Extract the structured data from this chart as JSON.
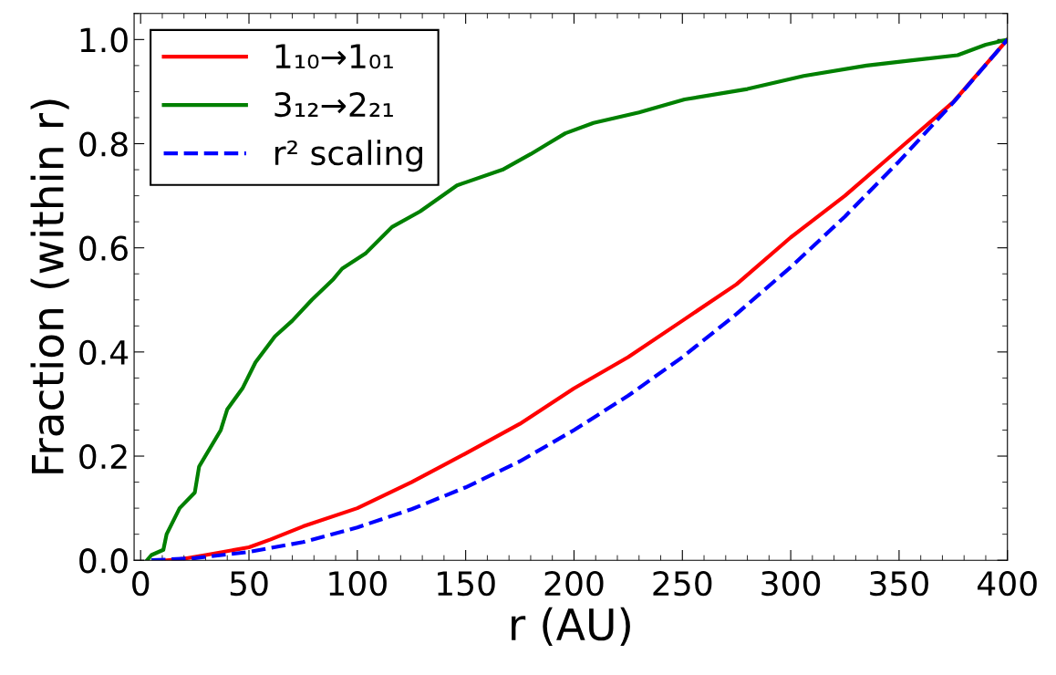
{
  "chart_data": {
    "type": "line",
    "xlabel": "r (AU)",
    "ylabel": "Fraction (within r)",
    "xlim": [
      -3,
      400
    ],
    "ylim": [
      0,
      1.05
    ],
    "xticks": [
      0,
      50,
      100,
      150,
      200,
      250,
      300,
      350,
      400
    ],
    "yticks": [
      {
        "value": 0,
        "label": "0.0"
      },
      {
        "value": 0.2,
        "label": "0.2"
      },
      {
        "value": 0.4,
        "label": "0.4"
      },
      {
        "value": 0.6,
        "label": "0.6"
      },
      {
        "value": 0.8,
        "label": "0.8"
      },
      {
        "value": 1.0,
        "label": "1.0"
      }
    ],
    "legend": "top left",
    "grid": false,
    "series": [
      {
        "name": "1₁₀→1₀₁",
        "color": "#ff0000",
        "line_style": "solid",
        "x": [
          12,
          20,
          30,
          50,
          60,
          75,
          100,
          125,
          150,
          175,
          200,
          225,
          250,
          275,
          300,
          325,
          350,
          375,
          400
        ],
        "values": [
          0,
          0.003,
          0.01,
          0.025,
          0.04,
          0.065,
          0.1,
          0.15,
          0.205,
          0.262,
          0.33,
          0.39,
          0.46,
          0.53,
          0.62,
          0.7,
          0.79,
          0.88,
          1.0
        ]
      },
      {
        "name": "3₁₂→2₂₁",
        "color": "#008000",
        "line_style": "solid",
        "x": [
          3,
          5,
          10.5,
          12,
          18,
          25,
          27,
          37,
          40,
          47,
          53,
          62,
          70,
          79,
          89,
          93,
          104,
          116,
          129,
          146,
          167,
          180,
          188,
          196,
          209,
          230,
          251,
          280,
          306,
          335,
          356,
          377,
          390,
          400
        ],
        "values": [
          0,
          0.01,
          0.02,
          0.05,
          0.1,
          0.13,
          0.18,
          0.25,
          0.29,
          0.33,
          0.38,
          0.43,
          0.46,
          0.5,
          0.54,
          0.56,
          0.59,
          0.64,
          0.67,
          0.72,
          0.75,
          0.78,
          0.8,
          0.82,
          0.84,
          0.86,
          0.885,
          0.905,
          0.93,
          0.95,
          0.96,
          0.97,
          0.99,
          1.0
        ]
      },
      {
        "name": "r² scaling",
        "color": "#0000ff",
        "line_style": "dashed",
        "x": [
          5,
          25,
          50,
          75,
          100,
          125,
          150,
          175,
          200,
          225,
          250,
          275,
          300,
          325,
          350,
          375,
          400
        ],
        "values": [
          0,
          0.004,
          0.016,
          0.035,
          0.063,
          0.098,
          0.14,
          0.19,
          0.25,
          0.316,
          0.39,
          0.473,
          0.563,
          0.66,
          0.766,
          0.879,
          1.0
        ]
      }
    ]
  }
}
